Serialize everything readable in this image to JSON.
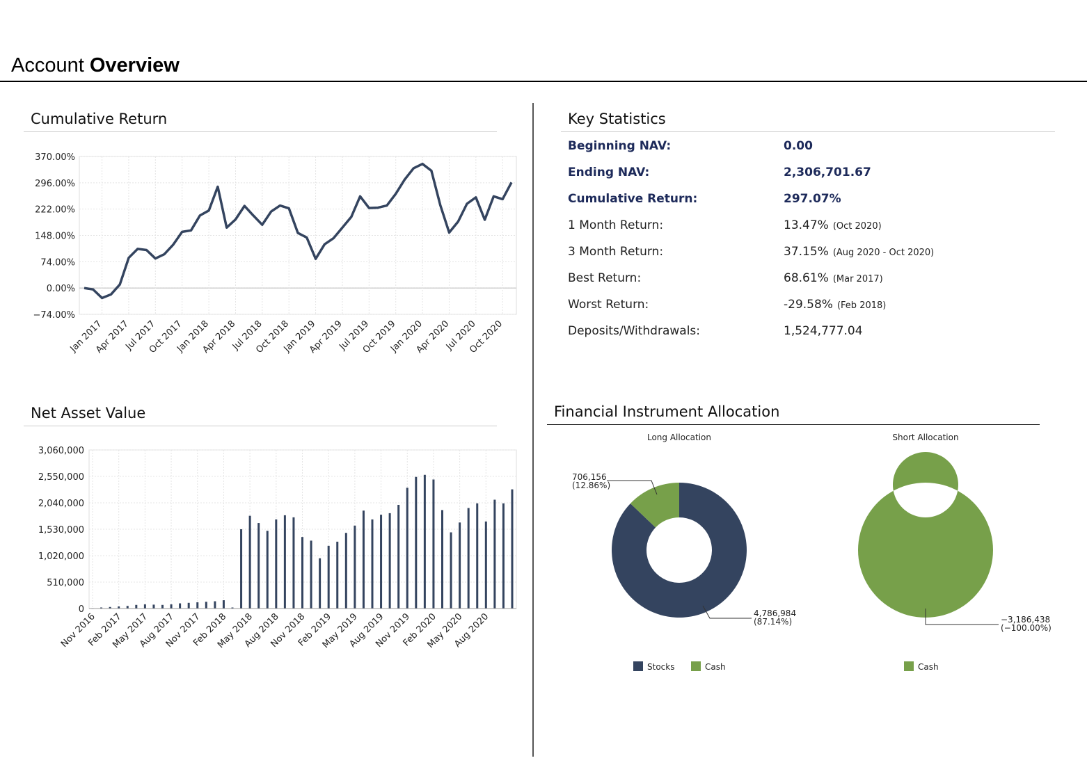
{
  "page": {
    "title_regular": "Account",
    "title_bold": "Overview",
    "colors": {
      "navy": "#34445f",
      "green": "#77a04a",
      "emph": "#1d2a5a"
    }
  },
  "sections": {
    "cumulative_return": "Cumulative Return",
    "key_statistics": "Key Statistics",
    "net_asset_value": "Net Asset Value",
    "allocation": "Financial Instrument Allocation"
  },
  "key_statistics": [
    {
      "label": "Beginning NAV:",
      "value": "0.00",
      "note": "",
      "emphasis": true
    },
    {
      "label": "Ending NAV:",
      "value": "2,306,701.67",
      "note": "",
      "emphasis": true
    },
    {
      "label": "Cumulative Return:",
      "value": "297.07%",
      "note": "",
      "emphasis": true
    },
    {
      "label": "1 Month Return:",
      "value": "13.47%",
      "note": "(Oct 2020)",
      "emphasis": false
    },
    {
      "label": "3 Month Return:",
      "value": "37.15%",
      "note": "(Aug 2020 - Oct 2020)",
      "emphasis": false
    },
    {
      "label": "Best Return:",
      "value": "68.61%",
      "note": "(Mar 2017)",
      "emphasis": false
    },
    {
      "label": "Worst Return:",
      "value": "-29.58%",
      "note": "(Feb 2018)",
      "emphasis": false
    },
    {
      "label": "Deposits/Withdrawals:",
      "value": "1,524,777.04",
      "note": "",
      "emphasis": false
    }
  ],
  "chart_data": [
    {
      "type": "line",
      "title": "Cumulative Return",
      "ylim": [
        -74,
        370
      ],
      "yticks": [
        "370.00%",
        "296.00%",
        "222.00%",
        "148.00%",
        "74.00%",
        "0.00%",
        "−74.00%"
      ],
      "xticks": [
        "Jan 2017",
        "Apr 2017",
        "Jul 2017",
        "Oct 2017",
        "Jan 2018",
        "Apr 2018",
        "Jul 2018",
        "Oct 2018",
        "Jan 2019",
        "Apr 2019",
        "Jul 2019",
        "Oct 2019",
        "Jan 2020",
        "Apr 2020",
        "Jul 2020",
        "Oct 2020"
      ],
      "grid": true,
      "series": [
        {
          "values": [
            0,
            -4,
            -28,
            -18,
            10,
            85,
            110,
            107,
            83,
            95,
            122,
            158,
            162,
            204,
            218,
            285,
            170,
            193,
            231,
            204,
            178,
            215,
            232,
            224,
            155,
            142,
            82,
            123,
            140,
            170,
            200,
            258,
            225,
            226,
            232,
            265,
            305,
            337,
            349,
            330,
            233,
            156,
            187,
            237,
            255,
            192,
            258,
            250,
            297
          ]
        }
      ]
    },
    {
      "type": "bar",
      "title": "Net Asset Value",
      "ylim": [
        0,
        3060000
      ],
      "yticks": [
        "3,060,000",
        "2,550,000",
        "2,040,000",
        "1,530,000",
        "1,020,000",
        "510,000",
        "0"
      ],
      "xticks": [
        "Nov 2016",
        "Feb 2017",
        "May 2017",
        "Aug 2017",
        "Nov 2017",
        "Feb 2018",
        "May 2018",
        "Aug 2018",
        "Nov 2018",
        "Feb 2019",
        "May 2019",
        "Aug 2019",
        "Nov 2019",
        "Feb 2020",
        "May 2020",
        "Aug 2020"
      ],
      "grid": true,
      "series": [
        {
          "values": [
            0,
            20000,
            30000,
            40000,
            50000,
            70000,
            80000,
            75000,
            70000,
            80000,
            100000,
            110000,
            120000,
            130000,
            140000,
            160000,
            20000,
            1530000,
            1790000,
            1650000,
            1500000,
            1720000,
            1800000,
            1760000,
            1380000,
            1310000,
            970000,
            1210000,
            1290000,
            1460000,
            1600000,
            1890000,
            1720000,
            1810000,
            1840000,
            2000000,
            2330000,
            2540000,
            2580000,
            2490000,
            1900000,
            1470000,
            1660000,
            1940000,
            2030000,
            1680000,
            2100000,
            2030000,
            2300000
          ]
        }
      ]
    },
    {
      "type": "pie",
      "title": "Long Allocation",
      "slices": [
        {
          "label": "Stocks",
          "value": 4786984,
          "text": "4,786,984",
          "pct": "(87.14%)",
          "color": "#34445f"
        },
        {
          "label": "Cash",
          "value": 706156,
          "text": "706,156",
          "pct": "(12.86%)",
          "color": "#77a04a"
        }
      ],
      "legend": [
        "Stocks",
        "Cash"
      ]
    },
    {
      "type": "pie",
      "title": "Short Allocation",
      "slices": [
        {
          "label": "Cash",
          "value": 3186438,
          "text": "−3,186,438",
          "pct": "(−100.00%)",
          "color": "#77a04a"
        }
      ],
      "legend": [
        "Cash"
      ]
    }
  ]
}
